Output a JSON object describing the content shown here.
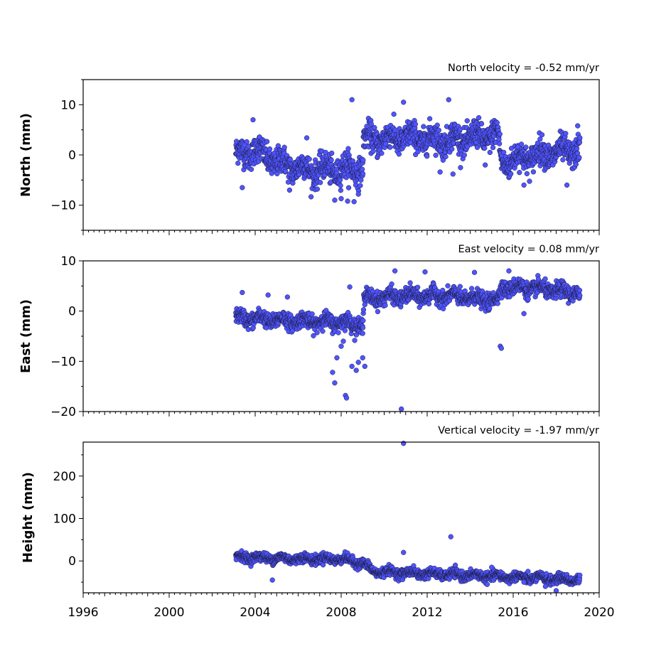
{
  "figure": {
    "background": "#ffffff",
    "marker_color": "#4f54ff",
    "marker_edge": "#1a1a3a"
  },
  "chart_data": [
    {
      "type": "scatter",
      "title": "North velocity = -0.52 mm/yr",
      "xlabel": "",
      "ylabel": "North (mm)",
      "xlim": [
        1996,
        2020
      ],
      "ylim": [
        -15,
        15
      ],
      "yticks": [
        10,
        0,
        -10
      ],
      "ytick_labels": [
        "10",
        "0",
        "−10"
      ],
      "show_xtick_labels": false,
      "data_range": [
        2003.1,
        2019.1
      ],
      "trend_knots": [
        [
          2003.1,
          0.0
        ],
        [
          2004.0,
          1.0
        ],
        [
          2005.0,
          -1.5
        ],
        [
          2006.5,
          -3.0
        ],
        [
          2008.0,
          -3.0
        ],
        [
          2009.0,
          -2.5
        ],
        [
          2009.05,
          3.0
        ],
        [
          2011.0,
          3.5
        ],
        [
          2013.0,
          3.0
        ],
        [
          2015.3,
          4.0
        ],
        [
          2015.45,
          -1.5
        ],
        [
          2017.0,
          0.0
        ],
        [
          2019.1,
          1.0
        ]
      ],
      "scatter_sd": 1.8,
      "outliers": [
        {
          "x": 2003.4,
          "y": -6.5
        },
        {
          "x": 2003.9,
          "y": 7.0
        },
        {
          "x": 2005.6,
          "y": -7.0
        },
        {
          "x": 2006.4,
          "y": 3.4
        },
        {
          "x": 2007.7,
          "y": -9.0
        },
        {
          "x": 2008.0,
          "y": -8.7
        },
        {
          "x": 2008.3,
          "y": -9.2
        },
        {
          "x": 2008.5,
          "y": 11.0
        },
        {
          "x": 2008.6,
          "y": -9.3
        },
        {
          "x": 2008.8,
          "y": -7.8
        },
        {
          "x": 2010.9,
          "y": 10.5
        },
        {
          "x": 2012.6,
          "y": -3.4
        },
        {
          "x": 2013.0,
          "y": 11.0
        },
        {
          "x": 2013.2,
          "y": -3.8
        },
        {
          "x": 2014.7,
          "y": -2.0
        },
        {
          "x": 2016.5,
          "y": -6.0
        },
        {
          "x": 2018.5,
          "y": -6.0
        },
        {
          "x": 2019.0,
          "y": 5.8
        }
      ]
    },
    {
      "type": "scatter",
      "title": "East velocity = 0.08 mm/yr",
      "xlabel": "",
      "ylabel": "East (mm)",
      "xlim": [
        1996,
        2020
      ],
      "ylim": [
        -20,
        10
      ],
      "yticks": [
        10,
        0,
        -10,
        -20
      ],
      "ytick_labels": [
        "10",
        "0",
        "−10",
        "−20"
      ],
      "show_xtick_labels": false,
      "data_range": [
        2003.1,
        2019.1
      ],
      "trend_knots": [
        [
          2003.1,
          -1.3
        ],
        [
          2006.0,
          -2.0
        ],
        [
          2008.0,
          -2.2
        ],
        [
          2009.0,
          -2.8
        ],
        [
          2009.05,
          2.5
        ],
        [
          2011.0,
          3.0
        ],
        [
          2013.0,
          3.0
        ],
        [
          2015.3,
          2.0
        ],
        [
          2015.45,
          4.8
        ],
        [
          2017.0,
          4.5
        ],
        [
          2019.1,
          3.5
        ]
      ],
      "scatter_sd": 1.0,
      "outliers": [
        {
          "x": 2003.4,
          "y": 3.7
        },
        {
          "x": 2004.6,
          "y": 3.2
        },
        {
          "x": 2005.5,
          "y": 2.8
        },
        {
          "x": 2007.6,
          "y": -12.2
        },
        {
          "x": 2007.7,
          "y": -14.3
        },
        {
          "x": 2007.8,
          "y": -9.3
        },
        {
          "x": 2008.0,
          "y": -7.0
        },
        {
          "x": 2008.1,
          "y": -6.0
        },
        {
          "x": 2008.2,
          "y": -16.8
        },
        {
          "x": 2008.25,
          "y": -17.3
        },
        {
          "x": 2008.4,
          "y": 4.8
        },
        {
          "x": 2008.5,
          "y": -11.0
        },
        {
          "x": 2008.7,
          "y": -11.8
        },
        {
          "x": 2008.8,
          "y": -10.2
        },
        {
          "x": 2009.0,
          "y": -9.3
        },
        {
          "x": 2009.1,
          "y": -11.0
        },
        {
          "x": 2010.5,
          "y": 8.0
        },
        {
          "x": 2010.8,
          "y": -19.5
        },
        {
          "x": 2011.9,
          "y": 7.8
        },
        {
          "x": 2014.2,
          "y": 7.7
        },
        {
          "x": 2015.4,
          "y": -7.0
        },
        {
          "x": 2015.45,
          "y": -7.4
        },
        {
          "x": 2016.5,
          "y": -0.5
        },
        {
          "x": 2015.8,
          "y": 8.0
        }
      ]
    },
    {
      "type": "scatter",
      "title": "Vertical velocity = -1.97 mm/yr",
      "xlabel": "",
      "ylabel": "Height (mm)",
      "xlim": [
        1996,
        2020
      ],
      "ylim": [
        -75,
        280
      ],
      "yticks": [
        200,
        100,
        0
      ],
      "ytick_labels": [
        "200",
        "100",
        "0"
      ],
      "show_xtick_labels": true,
      "xticks": [
        1996,
        2000,
        2004,
        2008,
        2012,
        2016,
        2020
      ],
      "xtick_labels": [
        "1996",
        "2000",
        "2004",
        "2008",
        "2012",
        "2016",
        "2020"
      ],
      "data_range": [
        2003.1,
        2019.1
      ],
      "trend_knots": [
        [
          2003.1,
          10.0
        ],
        [
          2006.0,
          5.0
        ],
        [
          2008.0,
          5.0
        ],
        [
          2009.0,
          -5.0
        ],
        [
          2009.5,
          -25.0
        ],
        [
          2011.0,
          -28.0
        ],
        [
          2013.0,
          -32.0
        ],
        [
          2016.0,
          -38.0
        ],
        [
          2019.1,
          -45.0
        ]
      ],
      "scatter_sd": 7.0,
      "outliers": [
        {
          "x": 2004.8,
          "y": -45.0
        },
        {
          "x": 2010.9,
          "y": 20.0
        },
        {
          "x": 2010.9,
          "y": 277.0
        },
        {
          "x": 2013.1,
          "y": 57.0
        },
        {
          "x": 2015.0,
          "y": -15.0
        },
        {
          "x": 2016.5,
          "y": -50.0
        },
        {
          "x": 2018.0,
          "y": -70.0
        },
        {
          "x": 2017.5,
          "y": -60.0
        }
      ]
    }
  ]
}
